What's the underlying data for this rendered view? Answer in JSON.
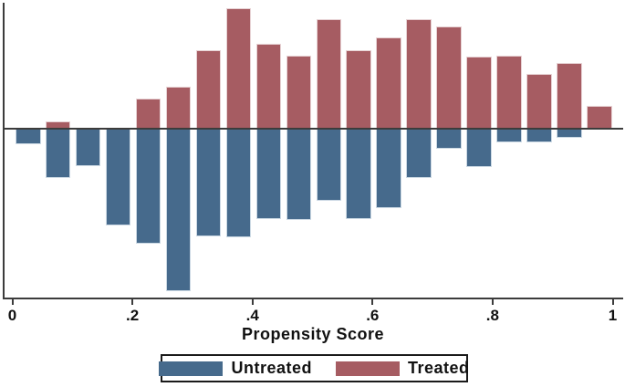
{
  "window": {
    "background": "#ffffff"
  },
  "chart_data": {
    "type": "bar",
    "variant": "mirrored_histogram",
    "title": "",
    "xlabel": "Propensity Score",
    "ylabel": "",
    "x_axis": {
      "min": 0,
      "max": 1,
      "tick_labels": [
        "0",
        ".2",
        ".4",
        ".6",
        ".8",
        "1"
      ],
      "tick_values": [
        0,
        0.2,
        0.4,
        0.6,
        0.8,
        1
      ]
    },
    "y_axis": {
      "labeled": false,
      "note": "no y-axis scale shown; values are relative bar heights (screen px, proportional to frequency)"
    },
    "bin_width": 0.05,
    "bin_starts": [
      0,
      0.05,
      0.1,
      0.15,
      0.2,
      0.25,
      0.3,
      0.35,
      0.4,
      0.45,
      0.5,
      0.55,
      0.6,
      0.65,
      0.7,
      0.75,
      0.8,
      0.85,
      0.9,
      0.95
    ],
    "series": [
      {
        "name": "Treated",
        "direction": "up",
        "color": "#a65c62",
        "values": [
          0,
          7,
          0,
          0,
          32,
          45,
          85,
          131,
          92,
          79,
          119,
          85,
          99,
          119,
          111,
          78,
          79,
          59,
          71,
          24
        ]
      },
      {
        "name": "Untreated",
        "direction": "down",
        "color": "#466a8c",
        "values": [
          16,
          53,
          40,
          105,
          125,
          177,
          117,
          118,
          98,
          99,
          78,
          98,
          86,
          53,
          21,
          41,
          14,
          14,
          9,
          0
        ]
      }
    ],
    "baseline_color": "#3c3c3c",
    "legend": {
      "position": "bottom-center",
      "border_color": "#1a1a1a",
      "items": [
        {
          "label": "Untreated",
          "color": "#466a8c"
        },
        {
          "label": "Treated",
          "color": "#a65c62"
        }
      ]
    }
  }
}
